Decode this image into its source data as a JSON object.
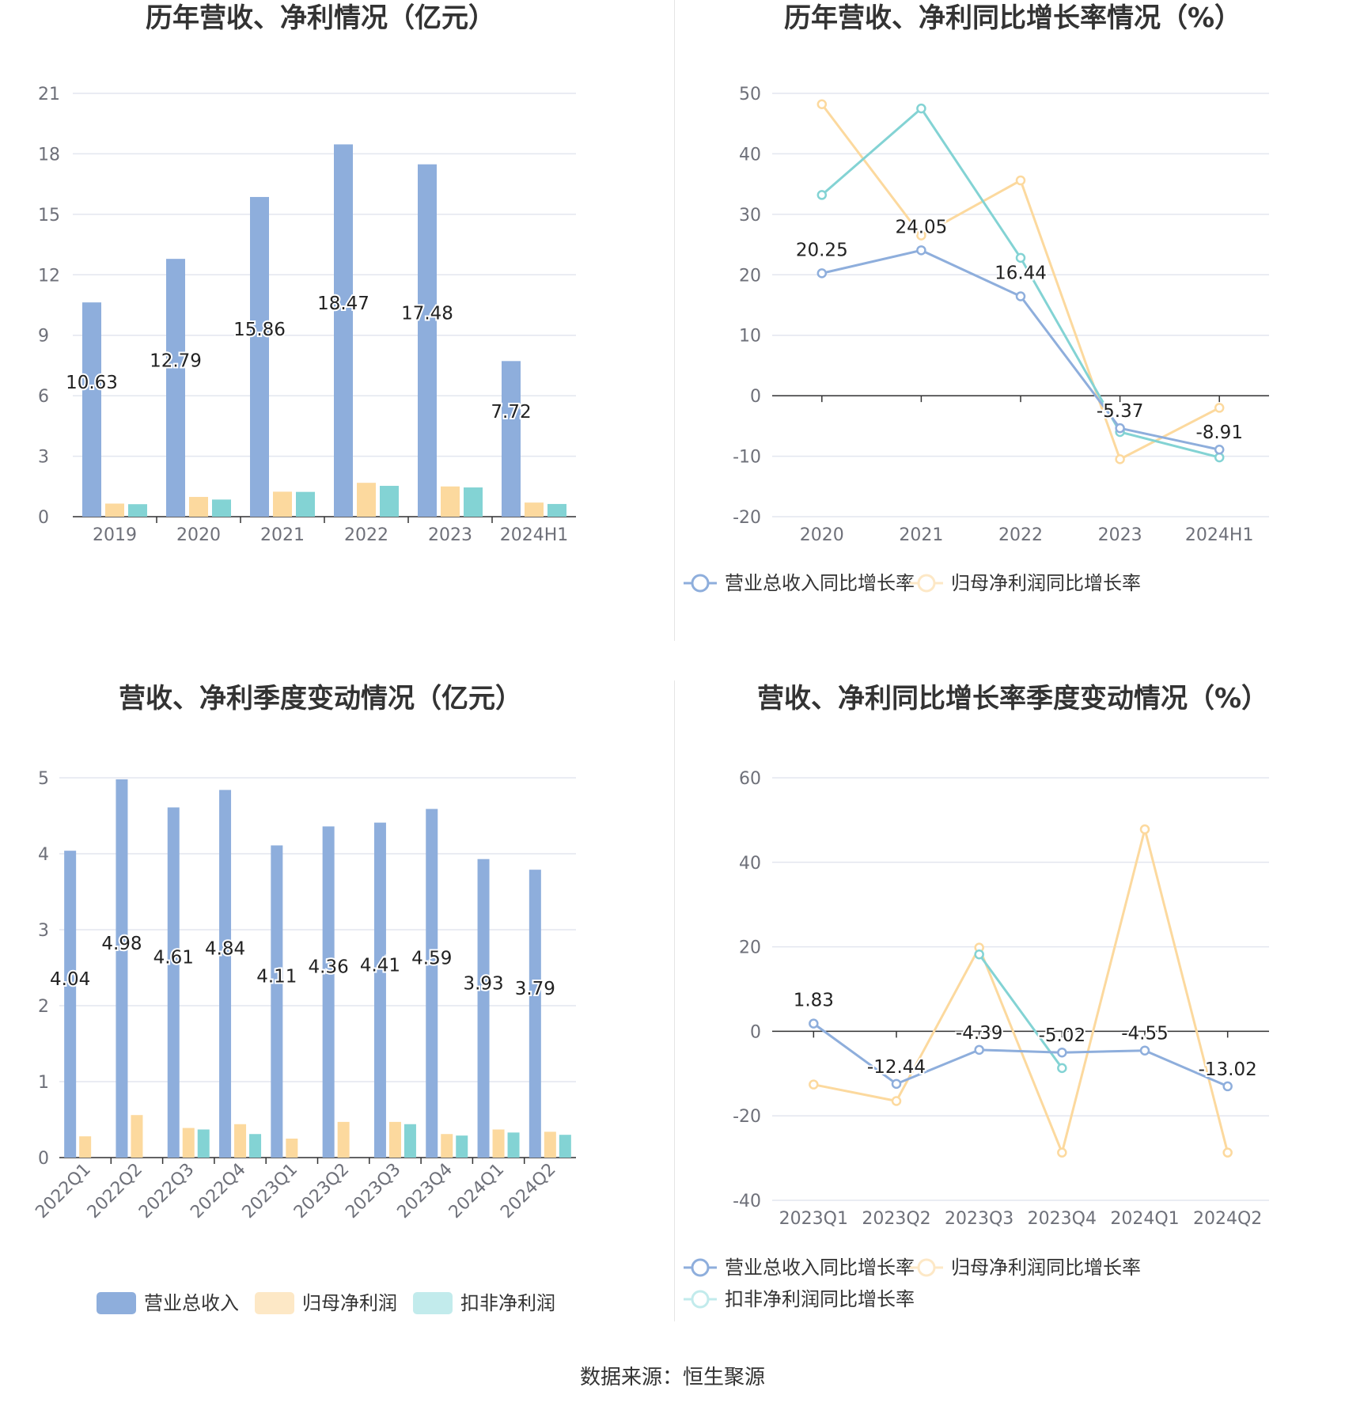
{
  "source_label": "数据来源：恒生聚源",
  "colors": {
    "revenue": "#8eaedc",
    "net_profit": "#fcd99e",
    "deducted_profit": "#83d3d4",
    "grid": "#e3e6ef",
    "axis_text": "#6e7079",
    "title": "#333333"
  },
  "chart_data": [
    {
      "type": "bar",
      "title": "历年营收、净利情况（亿元）",
      "categories": [
        "2019",
        "2020",
        "2021",
        "2022",
        "2023",
        "2024H1"
      ],
      "ylim": [
        0,
        21
      ],
      "yticks": [
        0,
        3,
        6,
        9,
        12,
        15,
        18,
        21
      ],
      "series": [
        {
          "name": "营业总收入",
          "values": [
            10.63,
            12.79,
            15.86,
            18.47,
            17.48,
            7.72
          ]
        },
        {
          "name": "归母净利润",
          "values": [
            0.65,
            0.98,
            1.24,
            1.68,
            1.5,
            0.7
          ]
        },
        {
          "name": "扣非净利润",
          "values": [
            0.62,
            0.85,
            1.23,
            1.53,
            1.45,
            0.63
          ]
        }
      ],
      "data_labels": [
        "10.63",
        "12.79",
        "15.86",
        "18.47",
        "17.48",
        "7.72"
      ],
      "grid": true,
      "legend_position": "bottom"
    },
    {
      "type": "line",
      "title": "历年营收、净利同比增长率情况（%）",
      "categories": [
        "2020",
        "2021",
        "2022",
        "2023",
        "2024H1"
      ],
      "ylim": [
        -20,
        50
      ],
      "yticks": [
        -20,
        -10,
        0,
        10,
        20,
        30,
        40,
        50
      ],
      "series": [
        {
          "name": "营业总收入同比增长率",
          "values": [
            20.25,
            24.05,
            16.44,
            -5.37,
            -8.91
          ]
        },
        {
          "name": "归母净利润同比增长率",
          "values": [
            48.2,
            26.5,
            35.6,
            -10.5,
            -2.0
          ]
        },
        {
          "name": "扣非净利润同比增长率",
          "values": [
            33.2,
            47.5,
            22.8,
            -6.0,
            -10.2
          ]
        }
      ],
      "data_labels": [
        "20.25",
        "24.05",
        "16.44",
        "-5.37",
        "-8.91"
      ],
      "grid": true,
      "legend_position": "bottom"
    },
    {
      "type": "bar",
      "title": "营收、净利季度变动情况（亿元）",
      "categories": [
        "2022Q1",
        "2022Q2",
        "2022Q3",
        "2022Q4",
        "2023Q1",
        "2023Q2",
        "2023Q3",
        "2023Q4",
        "2024Q1",
        "2024Q2"
      ],
      "ylim": [
        0,
        5
      ],
      "yticks": [
        0,
        1,
        2,
        3,
        4,
        5
      ],
      "series": [
        {
          "name": "营业总收入",
          "values": [
            4.04,
            4.98,
            4.61,
            4.84,
            4.11,
            4.36,
            4.41,
            4.59,
            3.93,
            3.79
          ]
        },
        {
          "name": "归母净利润",
          "values": [
            0.28,
            0.56,
            0.39,
            0.44,
            0.25,
            0.47,
            0.47,
            0.31,
            0.37,
            0.34
          ]
        },
        {
          "name": "扣非净利润",
          "values": [
            null,
            null,
            0.37,
            0.31,
            null,
            null,
            0.44,
            0.29,
            0.33,
            0.3
          ]
        }
      ],
      "data_labels": [
        "4.04",
        "4.98",
        "4.61",
        "4.84",
        "4.11",
        "4.36",
        "4.41",
        "4.59",
        "3.93",
        "3.79"
      ],
      "grid": true,
      "legend_position": "bottom"
    },
    {
      "type": "line",
      "title": "营收、净利同比增长率季度变动情况（%）",
      "categories": [
        "2023Q1",
        "2023Q2",
        "2023Q3",
        "2023Q4",
        "2024Q1",
        "2024Q2"
      ],
      "ylim": [
        -40,
        60
      ],
      "yticks": [
        -40,
        -20,
        0,
        20,
        40,
        60
      ],
      "series": [
        {
          "name": "营业总收入同比增长率",
          "values": [
            1.83,
            -12.44,
            -4.39,
            -5.02,
            -4.55,
            -13.02
          ]
        },
        {
          "name": "归母净利润同比增长率",
          "values": [
            -12.6,
            -16.5,
            19.8,
            -28.7,
            47.8,
            -28.7
          ]
        },
        {
          "name": "扣非净利润同比增长率",
          "values": [
            null,
            null,
            18.2,
            -8.7,
            null,
            null
          ]
        }
      ],
      "data_labels": [
        "1.83",
        "-12.44",
        "-4.39",
        "-5.02",
        "-4.55",
        "-13.02"
      ],
      "grid": true,
      "legend_position": "bottom"
    }
  ]
}
